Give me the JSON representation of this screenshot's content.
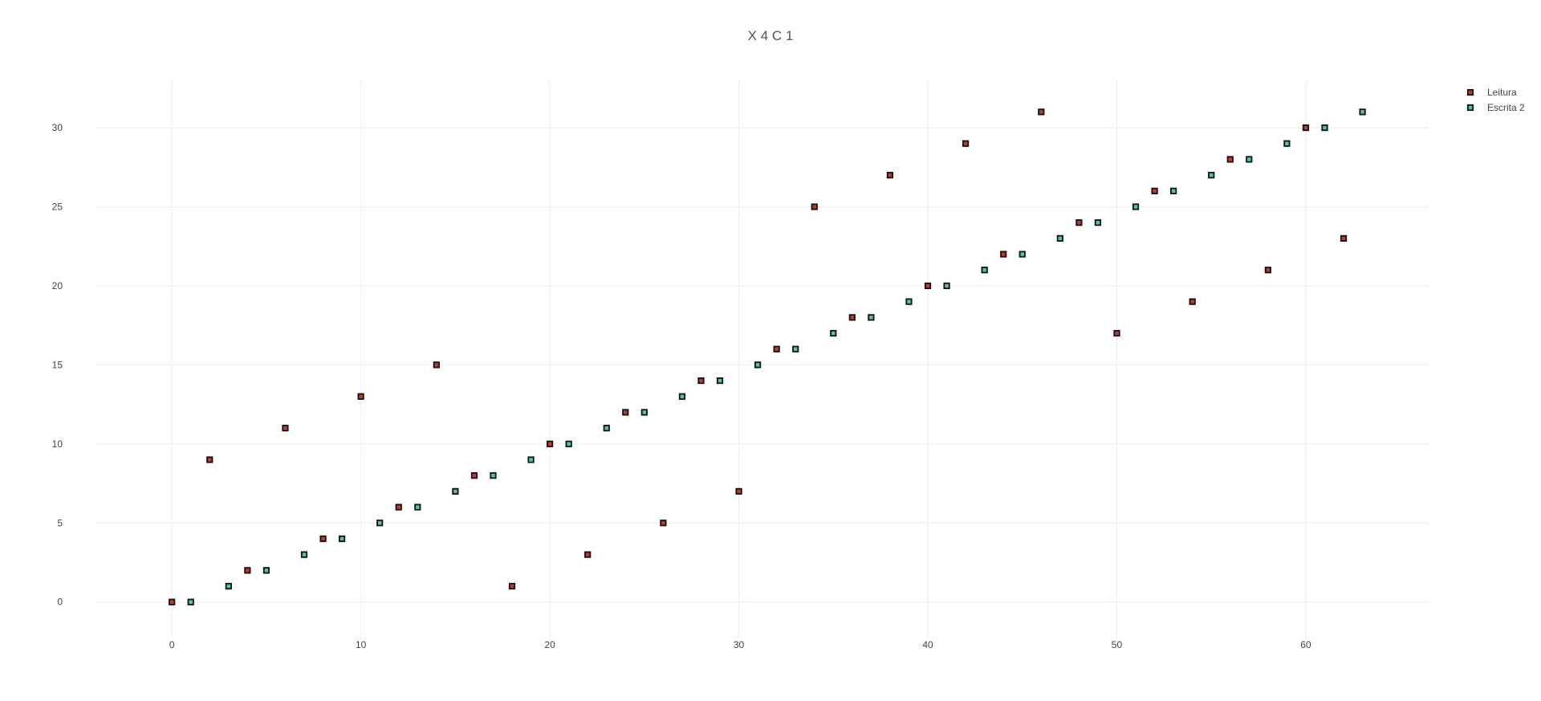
{
  "chart_data": {
    "type": "scatter",
    "title": "X 4 C 1",
    "xlabel": "",
    "ylabel": "",
    "xlim": [
      -4,
      66.5
    ],
    "ylim": [
      -2.3,
      33
    ],
    "x_ticks": [
      0,
      10,
      20,
      30,
      40,
      50,
      60
    ],
    "y_ticks": [
      0,
      5,
      10,
      15,
      20,
      25,
      30
    ],
    "grid": true,
    "legend_position": "top-right",
    "series": [
      {
        "name": "Leitura",
        "marker_fill": "#c0392b",
        "marker_stroke": "#111111",
        "x": [
          0,
          2,
          4,
          6,
          8,
          10,
          12,
          14,
          16,
          18,
          20,
          22,
          24,
          26,
          28,
          30,
          32,
          34,
          36,
          38,
          40,
          42,
          44,
          46,
          48,
          50,
          52,
          54,
          56,
          58,
          60,
          62
        ],
        "y": [
          0,
          9,
          2,
          11,
          4,
          13,
          6,
          15,
          8,
          1,
          10,
          3,
          12,
          5,
          14,
          7,
          16,
          25,
          18,
          27,
          20,
          29,
          22,
          31,
          24,
          17,
          26,
          19,
          28,
          21,
          30,
          23
        ]
      },
      {
        "name": "Escrita 2",
        "marker_fill": "#4fc3b0",
        "marker_stroke": "#111111",
        "x": [
          1,
          3,
          5,
          7,
          9,
          11,
          13,
          15,
          17,
          19,
          21,
          23,
          25,
          27,
          29,
          31,
          33,
          35,
          37,
          39,
          41,
          43,
          45,
          47,
          49,
          51,
          53,
          55,
          57,
          59,
          61,
          63
        ],
        "y": [
          0,
          1,
          2,
          3,
          4,
          5,
          6,
          7,
          8,
          9,
          10,
          11,
          12,
          13,
          14,
          15,
          16,
          17,
          18,
          19,
          20,
          21,
          22,
          23,
          24,
          25,
          26,
          27,
          28,
          29,
          30,
          31
        ]
      }
    ]
  }
}
